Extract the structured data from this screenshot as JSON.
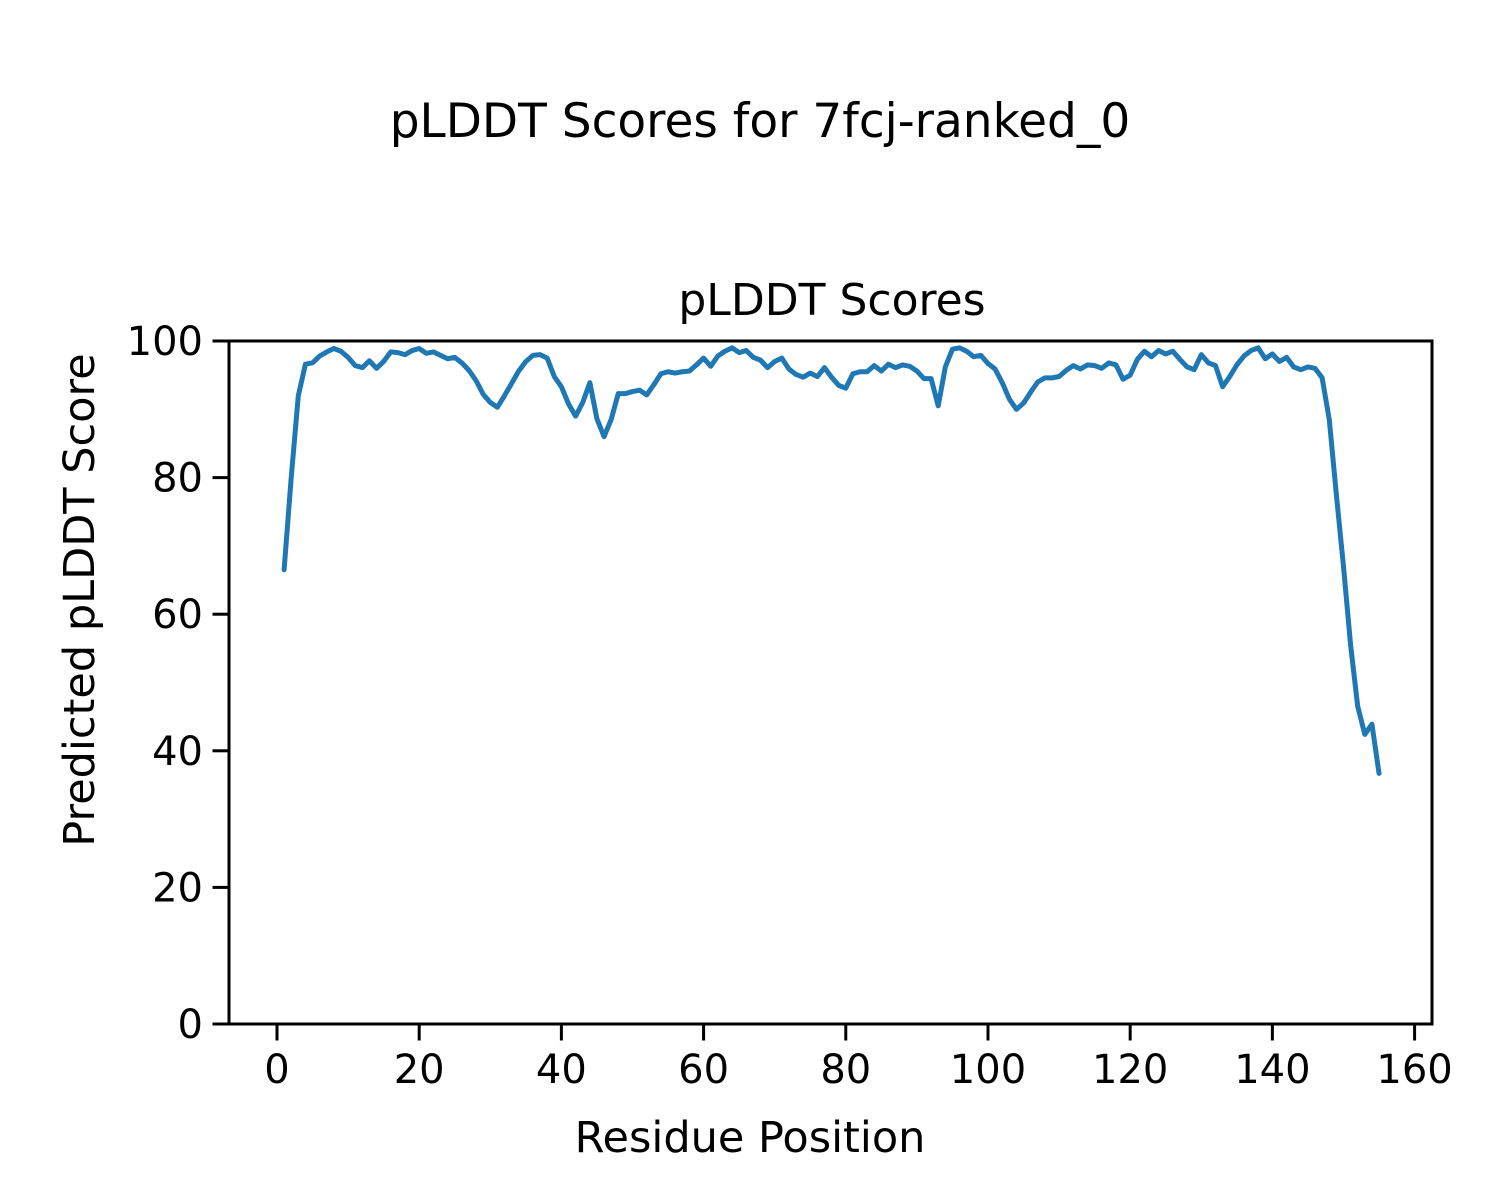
{
  "figure": {
    "title": "pLDDT Scores for 7fcj-ranked_0",
    "background": "#ffffff"
  },
  "chart_data": {
    "type": "line",
    "title": "pLDDT Scores",
    "xlabel": "Residue Position",
    "ylabel": "Predicted pLDDT Score",
    "legend": "none",
    "grid": false,
    "line_color": "#1f77b4",
    "axis_color": "#000000",
    "xlim": [
      -6.75,
      162.45
    ],
    "ylim": [
      0,
      100
    ],
    "x_ticks": [
      0,
      20,
      40,
      60,
      80,
      100,
      120,
      140,
      160
    ],
    "y_ticks": [
      0,
      20,
      40,
      60,
      80,
      100
    ],
    "x_start": 1,
    "series": [
      {
        "name": "pLDDT",
        "values": [
          66.5,
          80.0,
          92.0,
          96.6,
          96.8,
          97.8,
          98.4,
          98.9,
          98.5,
          97.6,
          96.4,
          96.1,
          97.1,
          96.0,
          97.0,
          98.4,
          98.3,
          98.0,
          98.6,
          98.9,
          98.2,
          98.4,
          97.9,
          97.4,
          97.6,
          96.8,
          95.7,
          94.2,
          92.2,
          91.0,
          90.3,
          92.0,
          93.8,
          95.6,
          97.0,
          97.9,
          98.0,
          97.5,
          94.8,
          93.3,
          90.8,
          89.0,
          91.0,
          93.9,
          88.6,
          86.0,
          88.5,
          92.3,
          92.3,
          92.6,
          92.8,
          92.1,
          93.6,
          95.2,
          95.5,
          95.3,
          95.5,
          95.6,
          96.5,
          97.5,
          96.3,
          97.8,
          98.5,
          99.0,
          98.3,
          98.6,
          97.6,
          97.2,
          96.1,
          97.0,
          97.5,
          95.9,
          95.1,
          94.7,
          95.3,
          94.8,
          96.1,
          94.7,
          93.5,
          93.1,
          95.2,
          95.5,
          95.5,
          96.4,
          95.6,
          96.6,
          96.1,
          96.5,
          96.3,
          95.6,
          94.5,
          94.5,
          90.5,
          96.2,
          98.8,
          99.0,
          98.5,
          97.7,
          97.9,
          96.7,
          95.9,
          93.9,
          91.5,
          90.0,
          90.9,
          92.5,
          94.0,
          94.6,
          94.6,
          94.8,
          95.7,
          96.4,
          95.9,
          96.5,
          96.4,
          96.0,
          96.8,
          96.5,
          94.4,
          95.0,
          97.3,
          98.5,
          97.7,
          98.6,
          98.1,
          98.5,
          97.3,
          96.2,
          95.8,
          98.0,
          96.8,
          96.4,
          93.3,
          94.8,
          96.5,
          97.8,
          98.6,
          99.0,
          97.4,
          98.1,
          97.0,
          97.6,
          96.2,
          95.8,
          96.2,
          96.0,
          94.6,
          88.5,
          77.5,
          67.0,
          55.5,
          46.5,
          42.4,
          43.9,
          36.7
        ]
      }
    ]
  }
}
